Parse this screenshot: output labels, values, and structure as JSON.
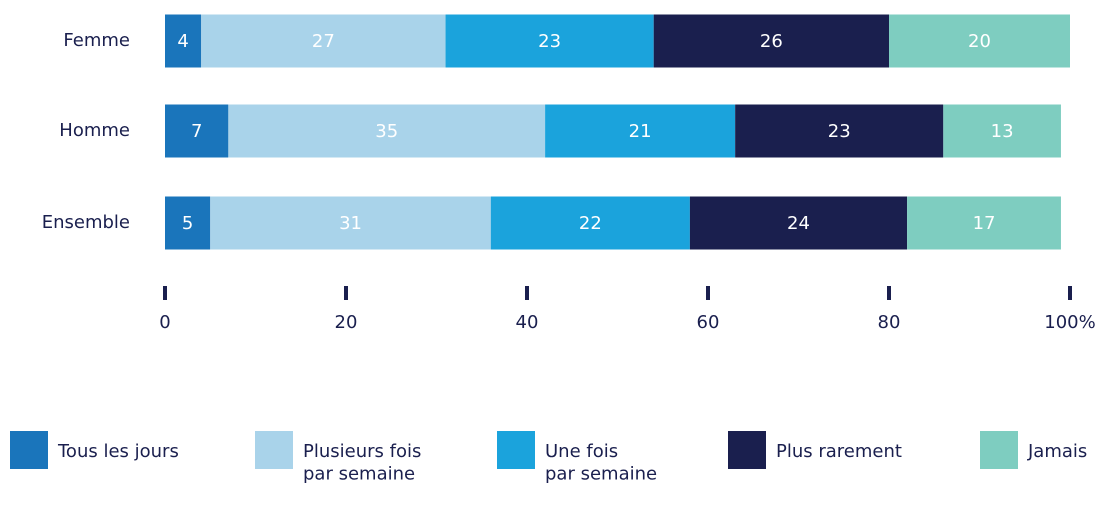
{
  "chart_data": {
    "type": "stacked-bar-horizontal",
    "categories": [
      "Femme",
      "Homme",
      "Ensemble"
    ],
    "series": [
      {
        "name": "Tous les jours",
        "color": "#1a75bb",
        "values": [
          4,
          7,
          5
        ]
      },
      {
        "name": "Plusieurs fois\npar semaine",
        "color": "#a9d3ea",
        "values": [
          27,
          35,
          31
        ]
      },
      {
        "name": "Une fois\npar semaine",
        "color": "#1ba3dc",
        "values": [
          23,
          21,
          22
        ]
      },
      {
        "name": "Plus rarement",
        "color": "#1a1f4e",
        "values": [
          26,
          23,
          24
        ]
      },
      {
        "name": "Jamais",
        "color": "#7ecdc0",
        "values": [
          20,
          13,
          17
        ]
      }
    ],
    "xlim": [
      0,
      100
    ],
    "xticks": [
      0,
      20,
      40,
      60,
      80,
      {
        "value": 100,
        "label": "100%"
      }
    ],
    "legend": "bottom"
  }
}
